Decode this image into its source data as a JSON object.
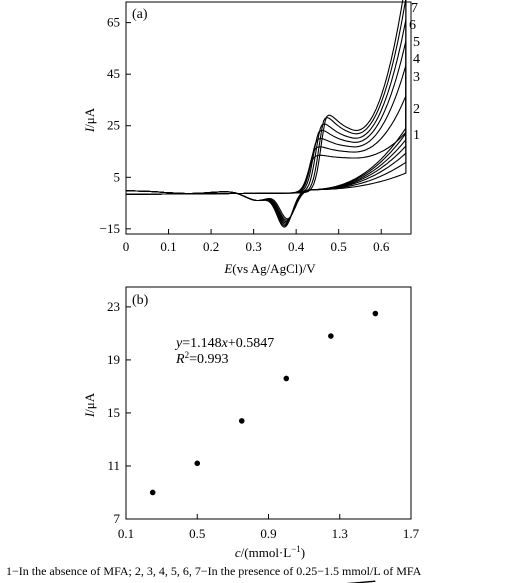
{
  "caption": "1−In the absence of MFA; 2, 3, 4, 5, 6, 7−In the presence of 0.25−1.5 mmol/L of MFA",
  "chart_data": [
    {
      "panel": "(a)",
      "type": "line",
      "x_ticks": [
        "0",
        "0.1",
        "0.2",
        "0.3",
        "0.4",
        "0.5",
        "0.6"
      ],
      "y_ticks": [
        "65",
        "45",
        "25",
        "5",
        "−15"
      ],
      "xlim": [
        0,
        0.67
      ],
      "ylim": [
        -17,
        73
      ],
      "xlabel_italic": "E",
      "xlabel_rest": "(vs Ag/AgCl)/V",
      "ylabel_italic": "I",
      "ylabel_rest": "/μA",
      "grid": false,
      "series": [
        {
          "name": "1",
          "end_current": 18,
          "peak_potential": 0.44,
          "peak_current": 14,
          "reduction_potential": 0.38,
          "reduction_current": -11
        },
        {
          "name": "2",
          "end_current": 30,
          "peak_potential": 0.443,
          "peak_current": 18,
          "reduction_potential": 0.378,
          "reduction_current": -11.5
        },
        {
          "name": "3",
          "end_current": 40,
          "peak_potential": 0.447,
          "peak_current": 22,
          "reduction_potential": 0.377,
          "reduction_current": -12
        },
        {
          "name": "4",
          "end_current": 48,
          "peak_potential": 0.452,
          "peak_current": 26,
          "reduction_potential": 0.376,
          "reduction_current": -12.5
        },
        {
          "name": "5",
          "end_current": 55,
          "peak_potential": 0.458,
          "peak_current": 29,
          "reduction_potential": 0.375,
          "reduction_current": -13
        },
        {
          "name": "6",
          "end_current": 62,
          "peak_potential": 0.465,
          "peak_current": 32,
          "reduction_potential": 0.374,
          "reduction_current": -13.5
        },
        {
          "name": "7",
          "end_current": 68,
          "peak_potential": 0.47,
          "peak_current": 33,
          "reduction_potential": 0.373,
          "reduction_current": -14
        }
      ]
    },
    {
      "panel": "(b)",
      "type": "scatter",
      "x_ticks": [
        "0.1",
        "0.5",
        "0.9",
        "1.3",
        "1.7"
      ],
      "y_ticks": [
        "23",
        "19",
        "15",
        "11",
        "7"
      ],
      "xlim": [
        0.1,
        1.7
      ],
      "ylim": [
        7,
        24.5
      ],
      "xlabel_italic": "c",
      "xlabel_rest": "/(mmol·L",
      "xlabel_sup": "−1",
      "xlabel_end": ")",
      "ylabel_italic": "I",
      "ylabel_rest": "/μA",
      "points": [
        {
          "x": 0.25,
          "y": 9.0
        },
        {
          "x": 0.5,
          "y": 11.2
        },
        {
          "x": 0.75,
          "y": 14.4
        },
        {
          "x": 1.0,
          "y": 17.6
        },
        {
          "x": 1.25,
          "y": 20.8
        },
        {
          "x": 1.5,
          "y": 22.5
        }
      ],
      "fit": {
        "slope": 1.148,
        "intercept": 0.5847,
        "x_range": [
          0.23,
          1.5
        ]
      },
      "equation_y": "y",
      "equation_x": "x",
      "equation_rest": "=1.148",
      "equation_tail": "+0.5847",
      "r2_label": "R",
      "r2_sup": "2",
      "r2_value": "=0.993"
    }
  ]
}
